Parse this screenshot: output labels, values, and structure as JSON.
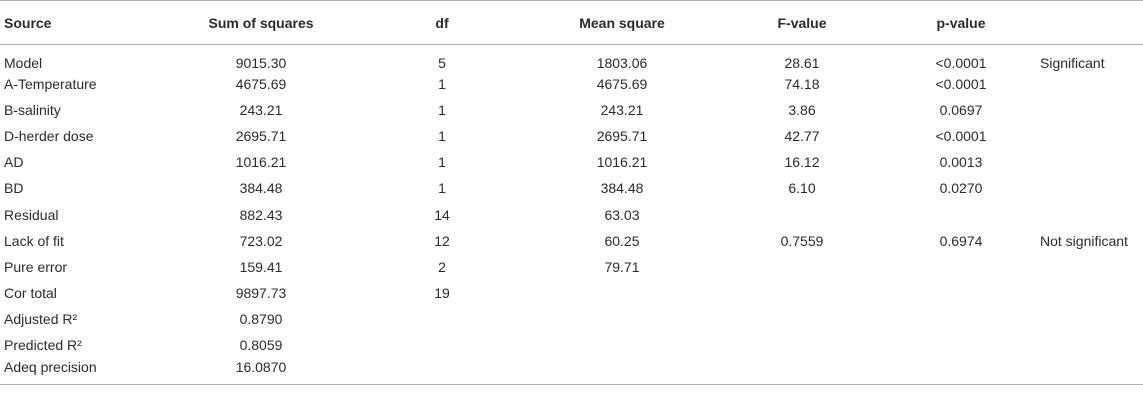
{
  "table": {
    "headers": [
      "Source",
      "Sum of squares",
      "df",
      "Mean square",
      "F-value",
      "p-value",
      ""
    ],
    "rows": [
      [
        "Model",
        "9015.30",
        "5",
        "1803.06",
        "28.61",
        "<0.0001",
        "Significant"
      ],
      [
        "A-Temperature",
        "4675.69",
        "1",
        "4675.69",
        "74.18",
        "<0.0001",
        ""
      ],
      [
        "B-salinity",
        "243.21",
        "1",
        "243.21",
        "3.86",
        "0.0697",
        ""
      ],
      [
        "D-herder dose",
        "2695.71",
        "1",
        "2695.71",
        "42.77",
        "<0.0001",
        ""
      ],
      [
        "AD",
        "1016.21",
        "1",
        "1016.21",
        "16.12",
        "0.0013",
        ""
      ],
      [
        "BD",
        "384.48",
        "1",
        "384.48",
        "6.10",
        "0.0270",
        ""
      ],
      [
        "Residual",
        "882.43",
        "14",
        "63.03",
        "",
        "",
        ""
      ],
      [
        "Lack of fit",
        "723.02",
        "12",
        "60.25",
        "0.7559",
        "0.6974",
        "Not significant"
      ],
      [
        "Pure error",
        "159.41",
        "2",
        "79.71",
        "",
        "",
        ""
      ],
      [
        "Cor total",
        "9897.73",
        "19",
        "",
        "",
        "",
        ""
      ],
      [
        "Adjusted R²",
        "0.8790",
        "",
        "",
        "",
        "",
        ""
      ],
      [
        "Predicted R²",
        "0.8059",
        "",
        "",
        "",
        "",
        ""
      ],
      [
        "Adeq precision",
        "16.0870",
        "",
        "",
        "",
        "",
        ""
      ]
    ]
  }
}
